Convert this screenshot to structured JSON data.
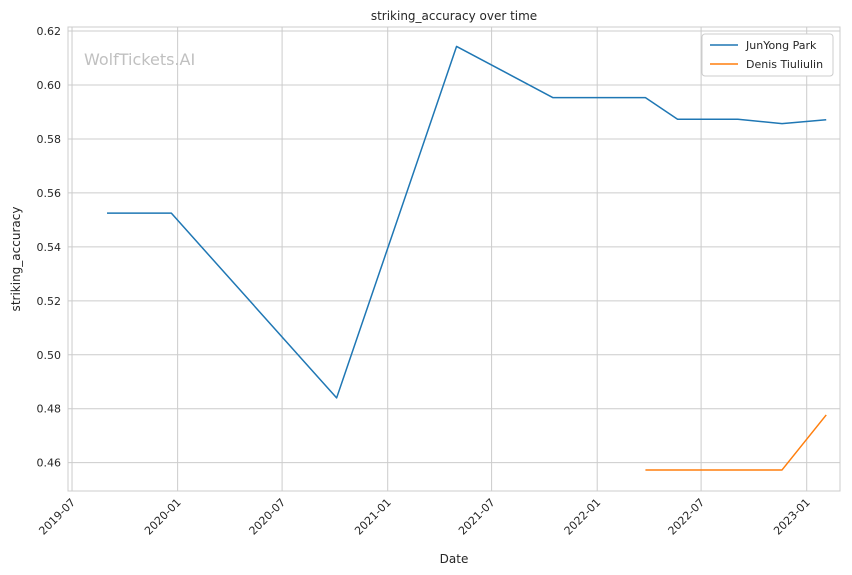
{
  "chart_data": {
    "type": "line",
    "title": "striking_accuracy over time",
    "xlabel": "Date",
    "ylabel": "striking_accuracy",
    "watermark": "WolfTickets.AI",
    "x_ticks": [
      "2019-07",
      "2020-01",
      "2020-07",
      "2021-01",
      "2021-07",
      "2022-01",
      "2022-07",
      "2023-01"
    ],
    "y_ticks": [
      "0.46",
      "0.48",
      "0.50",
      "0.52",
      "0.54",
      "0.56",
      "0.58",
      "0.60",
      "0.62"
    ],
    "xlim": [
      "2019-06-24",
      "2023-02-28"
    ],
    "ylim": [
      0.4495,
      0.6215
    ],
    "grid": true,
    "legend_position": "top-right",
    "series": [
      {
        "name": "JunYong Park",
        "color": "#1f77b4",
        "points": [
          {
            "x": "2019-08-31",
            "y": 0.5525
          },
          {
            "x": "2019-12-21",
            "y": 0.5525
          },
          {
            "x": "2020-10-04",
            "y": 0.484
          },
          {
            "x": "2021-05-01",
            "y": 0.6143
          },
          {
            "x": "2021-10-16",
            "y": 0.5953
          },
          {
            "x": "2022-03-26",
            "y": 0.5953
          },
          {
            "x": "2022-05-21",
            "y": 0.5873
          },
          {
            "x": "2022-09-03",
            "y": 0.5873
          },
          {
            "x": "2022-11-19",
            "y": 0.5857
          },
          {
            "x": "2023-02-04",
            "y": 0.5871
          }
        ]
      },
      {
        "name": "Denis Tiuliulin",
        "color": "#ff7f0e",
        "points": [
          {
            "x": "2022-03-26",
            "y": 0.4573
          },
          {
            "x": "2022-11-19",
            "y": 0.4573
          },
          {
            "x": "2023-02-04",
            "y": 0.4777
          }
        ]
      }
    ]
  }
}
